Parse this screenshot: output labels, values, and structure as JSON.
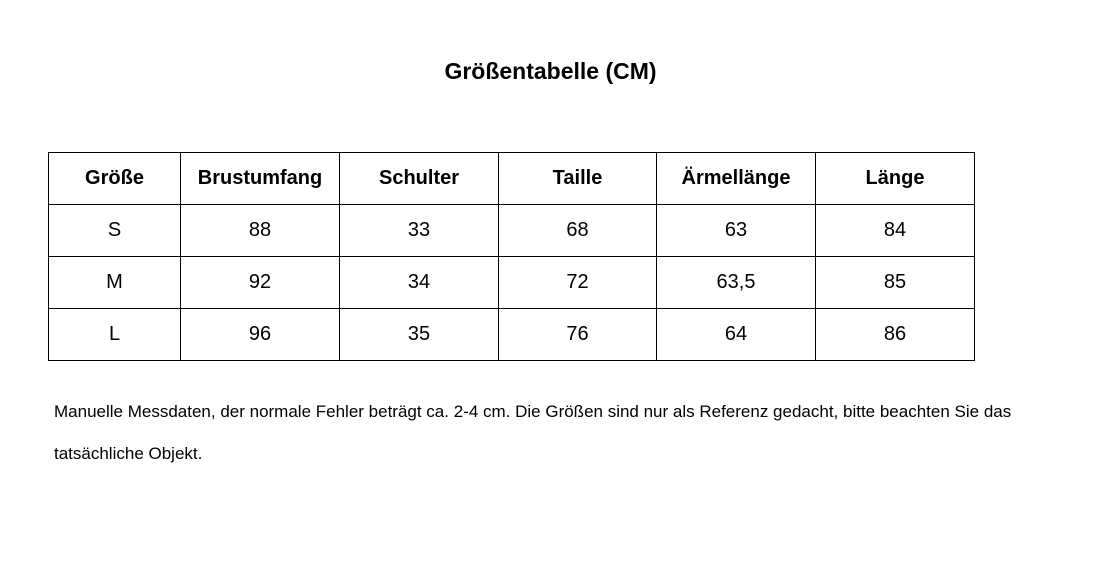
{
  "header": {
    "title": "Größentabelle (CM)"
  },
  "table": {
    "columns": [
      "Größe",
      "Brustumfang",
      "Schulter",
      "Taille",
      "Ärmellänge",
      "Länge"
    ],
    "rows": [
      [
        "S",
        "88",
        "33",
        "68",
        "63",
        "84"
      ],
      [
        "M",
        "92",
        "34",
        "72",
        "63,5",
        "85"
      ],
      [
        "L",
        "96",
        "35",
        "76",
        "64",
        "86"
      ]
    ]
  },
  "note": "Manuelle Messdaten, der normale Fehler beträgt ca. 2-4 cm. Die Größen sind nur als Referenz gedacht, bitte beachten Sie das tatsächliche Objekt."
}
